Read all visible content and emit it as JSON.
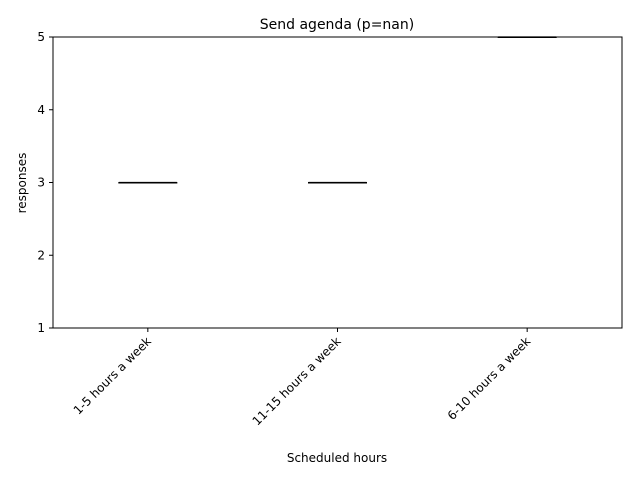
{
  "chart_data": {
    "type": "box",
    "title": "Send agenda (p=nan)",
    "xlabel": "Scheduled hours",
    "ylabel": "responses",
    "ylim": [
      1,
      5
    ],
    "yticks": [
      1,
      2,
      3,
      4,
      5
    ],
    "categories": [
      "1-5 hours a week",
      "11-15 hours a week",
      "6-10 hours a week"
    ],
    "boxes": [
      {
        "category": "1-5 hours a week",
        "min": 3,
        "q1": 3,
        "median": 3,
        "q3": 3,
        "max": 3
      },
      {
        "category": "11-15 hours a week",
        "min": 3,
        "q1": 3,
        "median": 3,
        "q3": 3,
        "max": 3
      },
      {
        "category": "6-10 hours a week",
        "min": 5,
        "q1": 5,
        "median": 5,
        "q3": 5,
        "max": 5
      }
    ],
    "grid": false,
    "colors": {
      "box": "#000000",
      "median": "#000000",
      "axis": "#000000"
    }
  }
}
